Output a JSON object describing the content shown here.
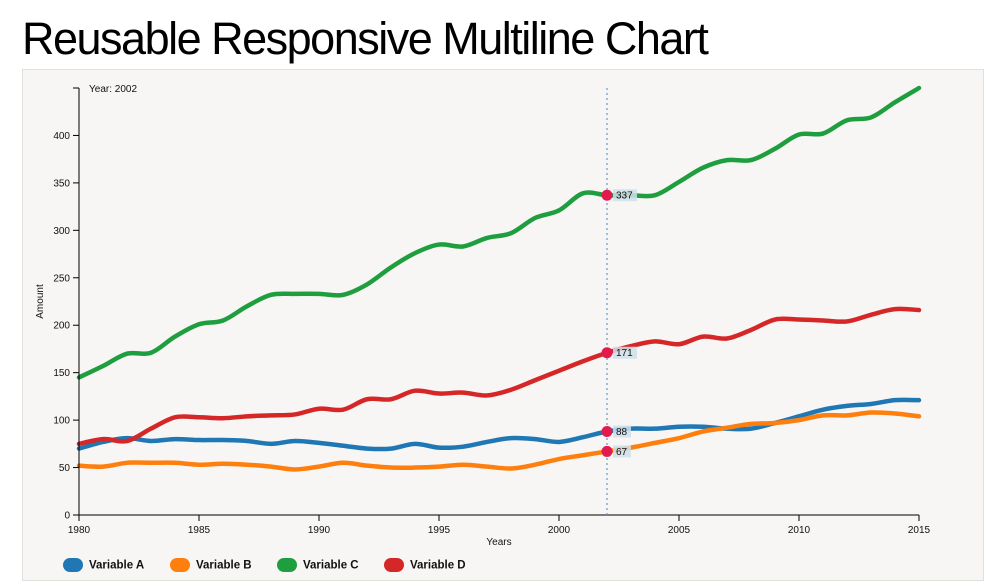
{
  "page": {
    "title": "Reusable Responsive Multiline Chart"
  },
  "chart_data": {
    "type": "line",
    "title": "",
    "xlabel": "Years",
    "ylabel": "Amount",
    "xlim": [
      1980,
      2015
    ],
    "ylim": [
      0,
      450
    ],
    "x_ticks": [
      1980,
      1985,
      1990,
      1995,
      2000,
      2005,
      2010,
      2015
    ],
    "y_ticks": [
      0,
      50,
      100,
      150,
      200,
      250,
      300,
      350,
      400
    ],
    "grid": false,
    "legend_position": "bottom-left",
    "x": [
      1980,
      1981,
      1982,
      1983,
      1984,
      1985,
      1986,
      1987,
      1988,
      1989,
      1990,
      1991,
      1992,
      1993,
      1994,
      1995,
      1996,
      1997,
      1998,
      1999,
      2000,
      2001,
      2002,
      2003,
      2004,
      2005,
      2006,
      2007,
      2008,
      2009,
      2010,
      2011,
      2012,
      2013,
      2014,
      2015
    ],
    "series": [
      {
        "name": "Variable A",
        "color": "#1f77b4",
        "values": [
          70,
          77,
          81,
          78,
          80,
          79,
          79,
          78,
          75,
          78,
          76,
          73,
          70,
          70,
          75,
          71,
          72,
          77,
          81,
          80,
          77,
          82,
          88,
          91,
          91,
          93,
          93,
          91,
          91,
          97,
          104,
          111,
          115,
          117,
          121,
          121
        ]
      },
      {
        "name": "Variable B",
        "color": "#ff7f0e",
        "values": [
          52,
          51,
          55,
          55,
          55,
          53,
          54,
          53,
          51,
          48,
          51,
          55,
          52,
          50,
          50,
          51,
          53,
          51,
          49,
          53,
          59,
          63,
          67,
          71,
          76,
          81,
          88,
          92,
          96,
          97,
          100,
          105,
          105,
          108,
          107,
          104
        ]
      },
      {
        "name": "Variable C",
        "color": "#1e9e3e",
        "values": [
          145,
          157,
          170,
          171,
          188,
          201,
          205,
          220,
          232,
          233,
          233,
          232,
          243,
          261,
          276,
          285,
          283,
          292,
          297,
          313,
          321,
          339,
          337,
          337,
          337,
          351,
          366,
          374,
          374,
          386,
          401,
          402,
          416,
          419,
          435,
          450
        ]
      },
      {
        "name": "Variable D",
        "color": "#d62728",
        "values": [
          75,
          80,
          78,
          91,
          103,
          103,
          102,
          104,
          105,
          106,
          112,
          111,
          122,
          122,
          131,
          128,
          129,
          126,
          132,
          142,
          152,
          162,
          171,
          178,
          183,
          180,
          188,
          186,
          195,
          206,
          206,
          205,
          204,
          211,
          217,
          216
        ]
      }
    ],
    "hover": {
      "year": 2002,
      "readout": "Year: 2002",
      "line_color": "#6699cc",
      "dot_color": "#e31a4e"
    }
  }
}
